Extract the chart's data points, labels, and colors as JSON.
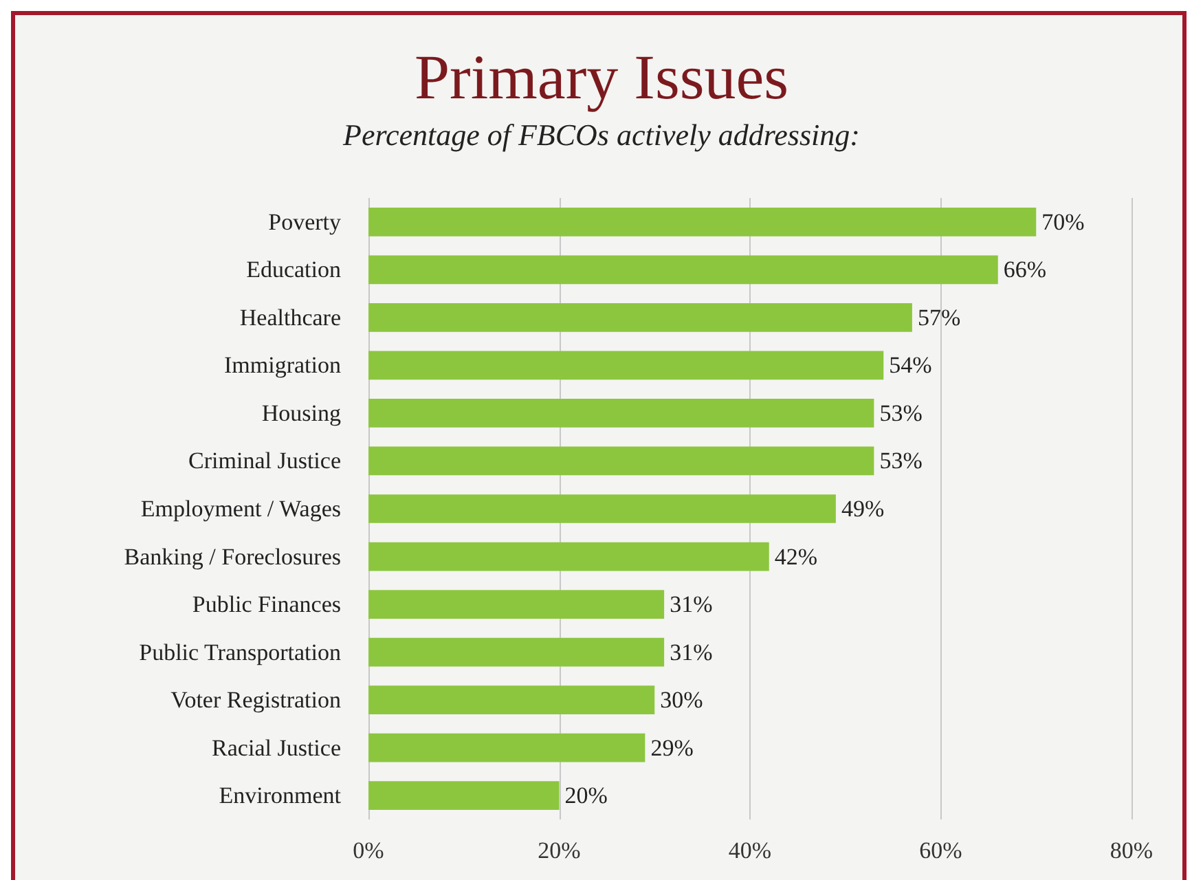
{
  "chart_data": {
    "type": "bar",
    "orientation": "horizontal",
    "title": "Primary Issues",
    "subtitle": "Percentage of FBCOs actively addressing:",
    "categories": [
      "Poverty",
      "Education",
      "Healthcare",
      "Immigration",
      "Housing",
      "Criminal Justice",
      "Employment / Wages",
      "Banking / Foreclosures",
      "Public Finances",
      "Public Transportation",
      "Voter Registration",
      "Racial Justice",
      "Environment"
    ],
    "values": [
      70,
      66,
      57,
      54,
      53,
      53,
      49,
      42,
      31,
      31,
      30,
      29,
      20
    ],
    "value_labels": [
      "70%",
      "66%",
      "57%",
      "54%",
      "53%",
      "53%",
      "49%",
      "42%",
      "31%",
      "31%",
      "30%",
      "29%",
      "20%"
    ],
    "color": "#8cc63f",
    "xlim": [
      0,
      80
    ],
    "xticks": [
      {
        "value": 0,
        "label": "0%"
      },
      {
        "value": 20,
        "label": "20%"
      },
      {
        "value": 40,
        "label": "40%"
      },
      {
        "value": 60,
        "label": "60%"
      },
      {
        "value": 80,
        "label": "80%"
      }
    ],
    "grid": "x"
  }
}
